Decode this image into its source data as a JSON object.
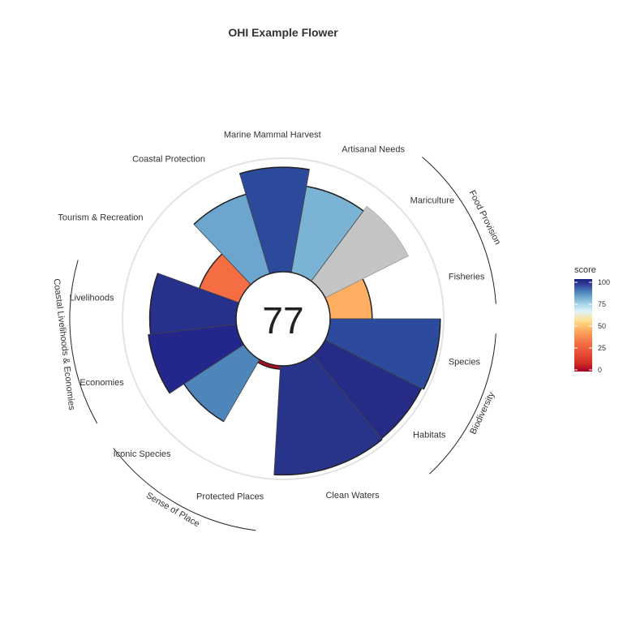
{
  "chart_data": {
    "type": "flower",
    "title": "OHI Example Flower",
    "center_score": "77",
    "ylim": [
      0,
      100
    ],
    "petals": [
      {
        "label": "Fisheries",
        "value": 37,
        "weight": 1,
        "color": "#FDAE61"
      },
      {
        "label": "Mariculture",
        "value": 82,
        "weight": 1,
        "color": "#C4C4C4",
        "na": true
      },
      {
        "label": "Artisanal Needs",
        "value": 77,
        "weight": 1,
        "color": "#7BB3D5"
      },
      {
        "label": "Marine Mammal Harvest",
        "value": 92,
        "weight": 1,
        "color": "#2B4A9C"
      },
      {
        "label": "Coastal Protection",
        "value": 73,
        "weight": 1,
        "color": "#6CA6CE"
      },
      {
        "label": "Tourism & Recreation",
        "value": 37,
        "weight": 1,
        "color": "#F46D43"
      },
      {
        "label": "Livelihoods",
        "value": 76,
        "weight": 1,
        "color": "#27308A"
      },
      {
        "label": "Economies",
        "value": 78,
        "weight": 1,
        "color": "#24278A"
      },
      {
        "label": "Iconic Species",
        "value": 63,
        "weight": 1,
        "color": "#4E85BB"
      },
      {
        "label": "Protected Places",
        "value": 3,
        "weight": 1,
        "color": "#B20D1F"
      },
      {
        "label": "Clean Waters",
        "value": 96,
        "weight": 1.6,
        "color": "#28338A"
      },
      {
        "label": "Habitats",
        "value": 95,
        "weight": 0.9,
        "color": "#262C86"
      },
      {
        "label": "Species",
        "value": 97,
        "weight": 1,
        "color": "#2C4B9C"
      }
    ],
    "groups": [
      {
        "label": "Food Provision",
        "petals": [
          "Fisheries",
          "Mariculture"
        ]
      },
      {
        "label": "Biodiversity",
        "petals": [
          "Species",
          "Habitats"
        ]
      },
      {
        "label": "Sense of Place",
        "petals": [
          "Iconic Species",
          "Protected Places"
        ]
      },
      {
        "label": "Coastal Livelihoods & Economies",
        "petals": [
          "Livelihoods",
          "Economies"
        ]
      }
    ],
    "legend": {
      "title": "score",
      "ticks": [
        "100",
        "75",
        "50",
        "25",
        "0"
      ],
      "colors": [
        "#A50026",
        "#D73027",
        "#F46D43",
        "#FDAE61",
        "#FEE090",
        "#E0F3F8",
        "#ABD9E9",
        "#74ADD1",
        "#4575B4",
        "#313695",
        "#1A237E"
      ]
    }
  }
}
